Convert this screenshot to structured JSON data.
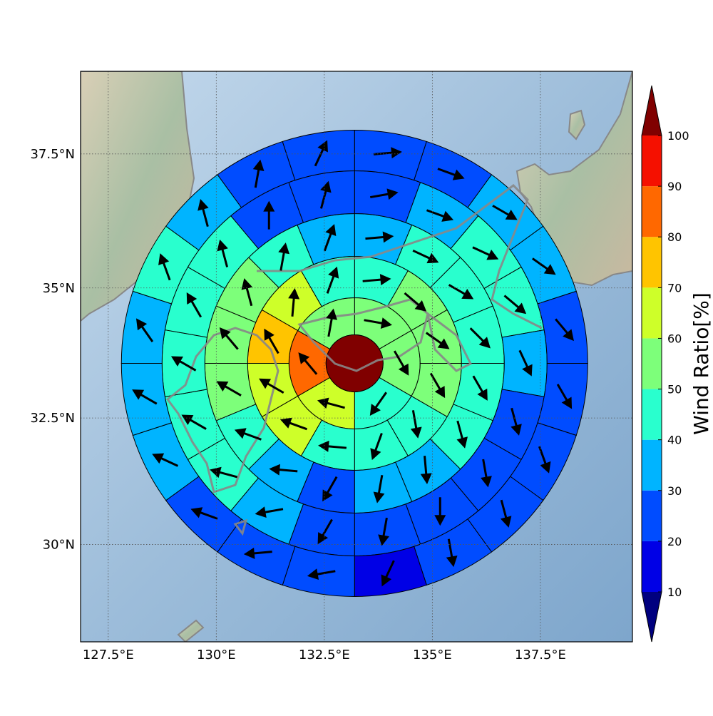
{
  "chart_data": {
    "type": "polar-grid-map",
    "projection": "mercator",
    "xlim": [
      126.86,
      139.63
    ],
    "ylim": [
      28.03,
      39.0
    ],
    "xticks": [
      {
        "value": 127.5,
        "label": "127.5°E"
      },
      {
        "value": 130,
        "label": "130°E"
      },
      {
        "value": 132.5,
        "label": "132.5°E"
      },
      {
        "value": 135,
        "label": "135°E"
      },
      {
        "value": 137.5,
        "label": "137.5°E"
      }
    ],
    "yticks": [
      {
        "value": 30,
        "label": "30°N"
      },
      {
        "value": 32.5,
        "label": "32.5°N"
      },
      {
        "value": 35,
        "label": "35°N"
      },
      {
        "value": 37.5,
        "label": "37.5°N"
      }
    ],
    "grid": true,
    "center": {
      "lon": 133.2,
      "lat": 33.56,
      "value": 105
    },
    "rings": [
      {
        "values": [
          55,
          55,
          45,
          65,
          85,
          55
        ],
        "directions": [
          100,
          150,
          215,
          285,
          320,
          10
        ]
      },
      {
        "values": [
          45,
          55,
          55,
          55,
          45,
          45,
          45,
          65,
          65,
          75,
          65,
          45
        ],
        "directions": [
          85,
          130,
          125,
          150,
          170,
          200,
          275,
          290,
          300,
          330,
          5,
          20
        ]
      },
      {
        "values": [
          35,
          45,
          45,
          45,
          45,
          45,
          35,
          35,
          25,
          35,
          45,
          55,
          55,
          55,
          45,
          35
        ],
        "directions": [
          85,
          115,
          120,
          135,
          150,
          165,
          175,
          190,
          210,
          275,
          290,
          300,
          320,
          345,
          10,
          20
        ]
      },
      {
        "values": [
          25,
          35,
          45,
          45,
          35,
          25,
          25,
          25,
          25,
          25,
          35,
          45,
          45,
          45,
          45,
          45,
          25,
          25
        ],
        "directions": [
          80,
          110,
          115,
          130,
          155,
          165,
          170,
          180,
          190,
          210,
          260,
          285,
          300,
          300,
          330,
          345,
          0,
          15
        ]
      },
      {
        "values": [
          25,
          25,
          35,
          35,
          25,
          25,
          25,
          25,
          25,
          15,
          25,
          25,
          25,
          35,
          35,
          35,
          45,
          35,
          25,
          25
        ],
        "directions": [
          85,
          110,
          120,
          125,
          140,
          150,
          160,
          165,
          170,
          205,
          260,
          265,
          290,
          295,
          300,
          325,
          340,
          345,
          10,
          25
        ]
      }
    ],
    "colorbar": {
      "label": "Wind Ratio[%]",
      "ticks": [
        10,
        20,
        30,
        40,
        50,
        60,
        70,
        80,
        90,
        100
      ],
      "colors": [
        "#0000e6",
        "#004cff",
        "#00b4ff",
        "#29ffce",
        "#7dff7a",
        "#ceff29",
        "#ffc400",
        "#ff6800",
        "#f51000"
      ],
      "under_color": "#00007f",
      "over_color": "#800000"
    }
  }
}
